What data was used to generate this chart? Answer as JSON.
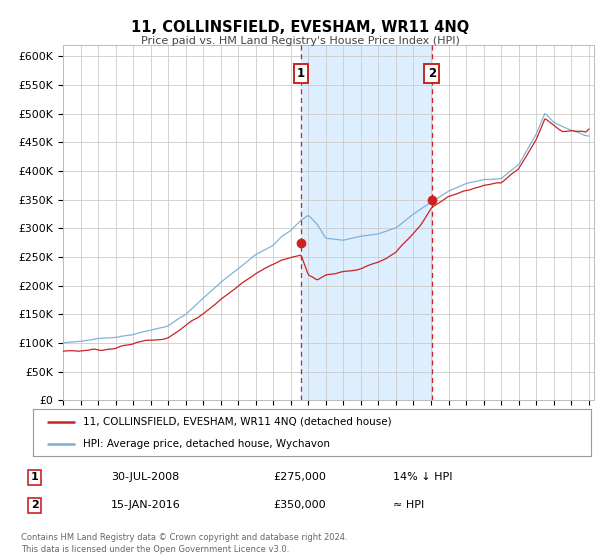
{
  "title": "11, COLLINSFIELD, EVESHAM, WR11 4NQ",
  "subtitle": "Price paid vs. HM Land Registry's House Price Index (HPI)",
  "ylim": [
    0,
    620000
  ],
  "yticks": [
    0,
    50000,
    100000,
    150000,
    200000,
    250000,
    300000,
    350000,
    400000,
    450000,
    500000,
    550000,
    600000
  ],
  "ytick_labels": [
    "£0",
    "£50K",
    "£100K",
    "£150K",
    "£200K",
    "£250K",
    "£300K",
    "£350K",
    "£400K",
    "£450K",
    "£500K",
    "£550K",
    "£600K"
  ],
  "hpi_color": "#7bafd4",
  "price_color": "#cc2222",
  "marker_color": "#cc2222",
  "vline_color": "#cc2222",
  "shade_color": "#ddeeff",
  "grid_color": "#cccccc",
  "background_color": "#ffffff",
  "legend_label_price": "11, COLLINSFIELD, EVESHAM, WR11 4NQ (detached house)",
  "legend_label_hpi": "HPI: Average price, detached house, Wychavon",
  "annotation1_num": "1",
  "annotation1_date": "30-JUL-2008",
  "annotation1_price": "£275,000",
  "annotation1_hpi": "14% ↓ HPI",
  "annotation2_num": "2",
  "annotation2_date": "15-JAN-2016",
  "annotation2_price": "£350,000",
  "annotation2_hpi": "≈ HPI",
  "footer1": "Contains HM Land Registry data © Crown copyright and database right 2024.",
  "footer2": "This data is licensed under the Open Government Licence v3.0.",
  "sale1_year": 2008.58,
  "sale1_price": 275000,
  "sale2_year": 2016.04,
  "sale2_price": 350000
}
